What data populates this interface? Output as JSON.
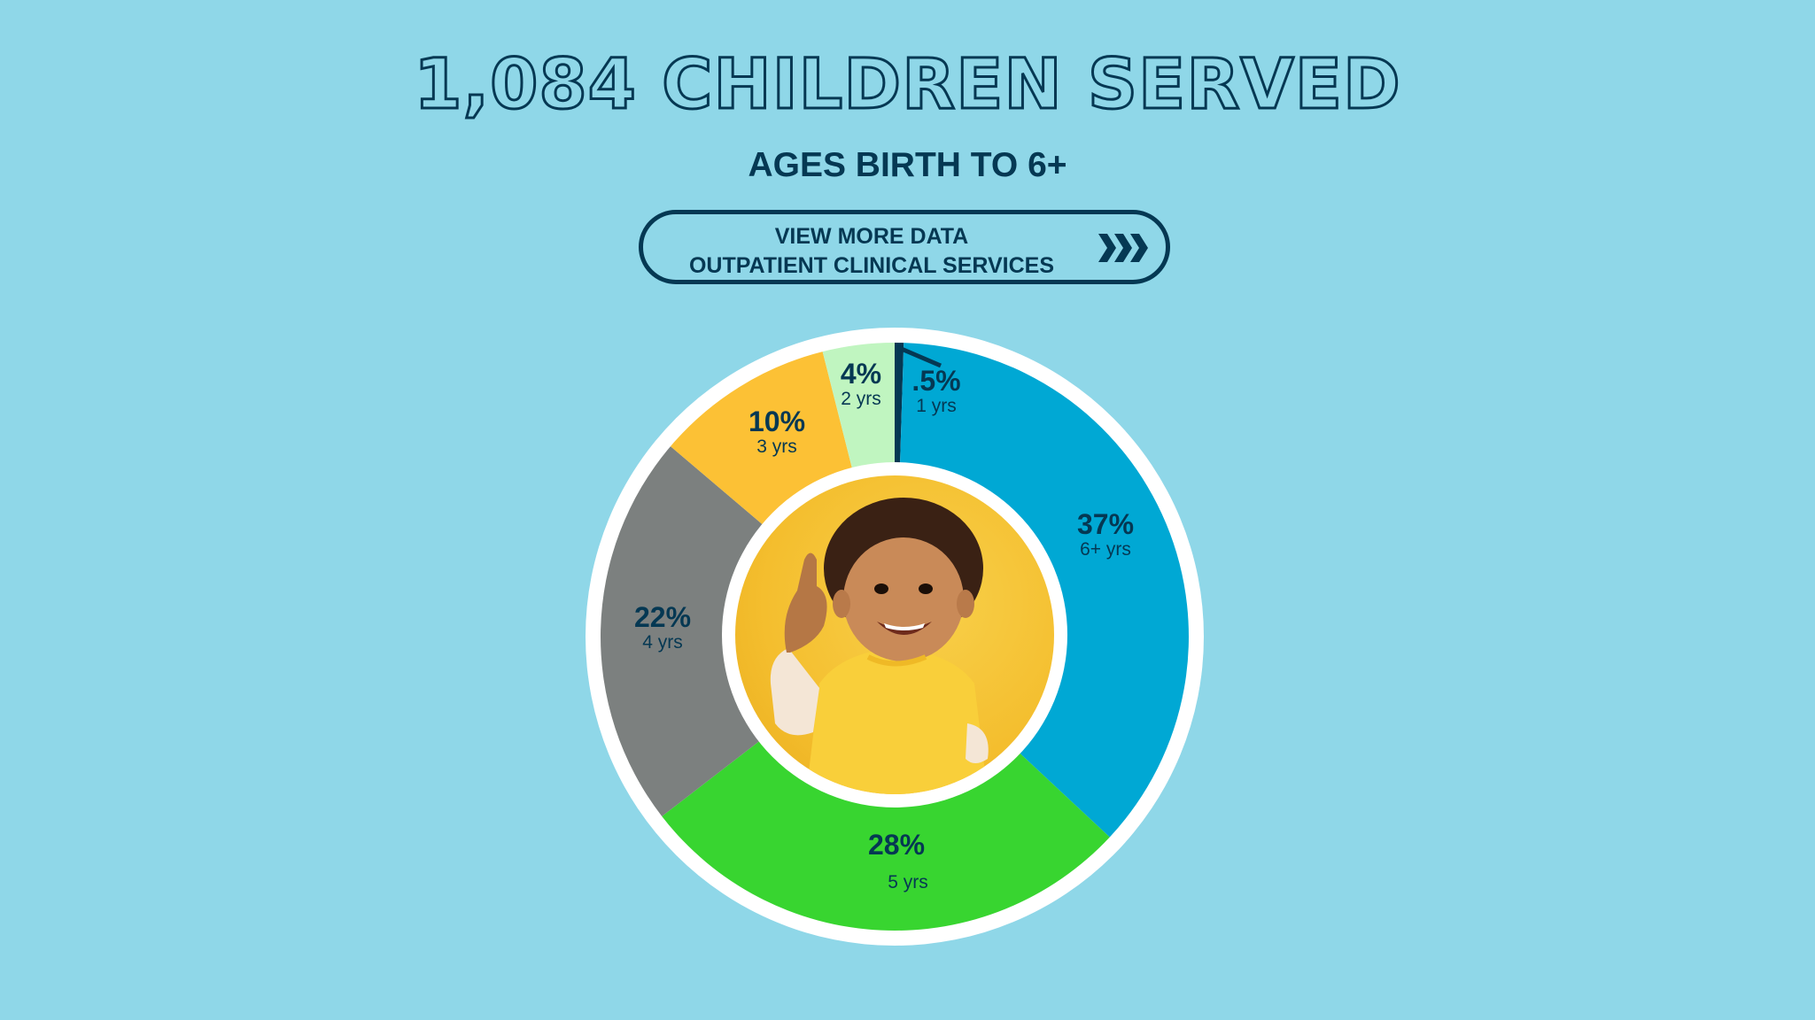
{
  "header": {
    "title": "1,084 CHILDREN SERVED",
    "subtitle": "AGES BIRTH TO 6+"
  },
  "cta": {
    "line1": "VIEW MORE DATA",
    "line2": "OUTPATIENT CLINICAL SERVICES",
    "icon": "triple-chevron-right-icon"
  },
  "colors": {
    "background": "#8fd7e8",
    "text": "#053853",
    "ring": "#ffffff"
  },
  "center_image": {
    "description": "Smiling toddler in yellow shirt giving a thumbs up on a yellow background"
  },
  "chart_data": {
    "type": "pie",
    "variant": "donut",
    "title": "1,084 CHILDREN SERVED",
    "subtitle": "AGES BIRTH TO 6+",
    "start_angle": "top, clockwise",
    "categories": [
      "1 yrs",
      "6+ yrs",
      "5 yrs",
      "4 yrs",
      "3 yrs",
      "2 yrs"
    ],
    "values": [
      0.5,
      37,
      28,
      22,
      10,
      4
    ],
    "labels": [
      ".5%",
      "37%",
      "28%",
      "22%",
      "10%",
      "4%"
    ],
    "colors": [
      "#053853",
      "#00a8d4",
      "#38d530",
      "#7c807f",
      "#fcc135",
      "#c0f5c0"
    ],
    "legend": "none (inline labels)"
  },
  "slices": [
    {
      "pct": ".5%",
      "yrs": "1 yrs"
    },
    {
      "pct": "37%",
      "yrs": "6+ yrs"
    },
    {
      "pct": "28%",
      "yrs": "5 yrs"
    },
    {
      "pct": "22%",
      "yrs": "4 yrs"
    },
    {
      "pct": "10%",
      "yrs": "3 yrs"
    },
    {
      "pct": "4%",
      "yrs": "2 yrs"
    }
  ]
}
